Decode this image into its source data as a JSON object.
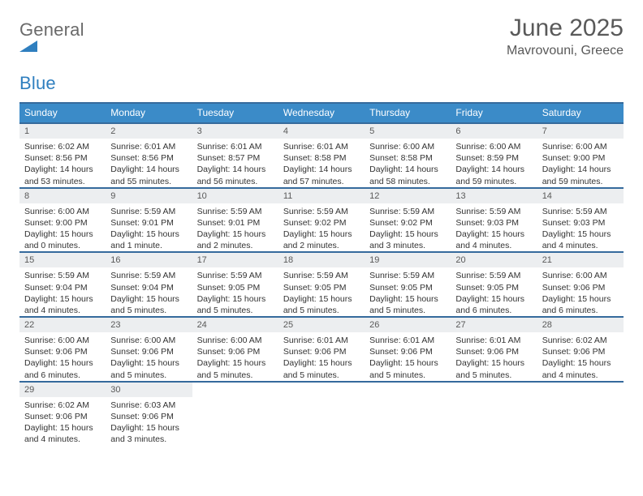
{
  "brand": {
    "name_a": "General",
    "name_b": "Blue"
  },
  "title": "June 2025",
  "subtitle": "Mavrovouni, Greece",
  "colors": {
    "header_bg": "#3b8bc8",
    "header_text": "#ffffff",
    "rule": "#356a9c",
    "daynum_bg": "#eceef0",
    "text": "#333333",
    "title_text": "#595959"
  },
  "day_headers": [
    "Sunday",
    "Monday",
    "Tuesday",
    "Wednesday",
    "Thursday",
    "Friday",
    "Saturday"
  ],
  "weeks": [
    [
      {
        "n": "1",
        "sr": "Sunrise: 6:02 AM",
        "ss": "Sunset: 8:56 PM",
        "d1": "Daylight: 14 hours",
        "d2": "and 53 minutes."
      },
      {
        "n": "2",
        "sr": "Sunrise: 6:01 AM",
        "ss": "Sunset: 8:56 PM",
        "d1": "Daylight: 14 hours",
        "d2": "and 55 minutes."
      },
      {
        "n": "3",
        "sr": "Sunrise: 6:01 AM",
        "ss": "Sunset: 8:57 PM",
        "d1": "Daylight: 14 hours",
        "d2": "and 56 minutes."
      },
      {
        "n": "4",
        "sr": "Sunrise: 6:01 AM",
        "ss": "Sunset: 8:58 PM",
        "d1": "Daylight: 14 hours",
        "d2": "and 57 minutes."
      },
      {
        "n": "5",
        "sr": "Sunrise: 6:00 AM",
        "ss": "Sunset: 8:58 PM",
        "d1": "Daylight: 14 hours",
        "d2": "and 58 minutes."
      },
      {
        "n": "6",
        "sr": "Sunrise: 6:00 AM",
        "ss": "Sunset: 8:59 PM",
        "d1": "Daylight: 14 hours",
        "d2": "and 59 minutes."
      },
      {
        "n": "7",
        "sr": "Sunrise: 6:00 AM",
        "ss": "Sunset: 9:00 PM",
        "d1": "Daylight: 14 hours",
        "d2": "and 59 minutes."
      }
    ],
    [
      {
        "n": "8",
        "sr": "Sunrise: 6:00 AM",
        "ss": "Sunset: 9:00 PM",
        "d1": "Daylight: 15 hours",
        "d2": "and 0 minutes."
      },
      {
        "n": "9",
        "sr": "Sunrise: 5:59 AM",
        "ss": "Sunset: 9:01 PM",
        "d1": "Daylight: 15 hours",
        "d2": "and 1 minute."
      },
      {
        "n": "10",
        "sr": "Sunrise: 5:59 AM",
        "ss": "Sunset: 9:01 PM",
        "d1": "Daylight: 15 hours",
        "d2": "and 2 minutes."
      },
      {
        "n": "11",
        "sr": "Sunrise: 5:59 AM",
        "ss": "Sunset: 9:02 PM",
        "d1": "Daylight: 15 hours",
        "d2": "and 2 minutes."
      },
      {
        "n": "12",
        "sr": "Sunrise: 5:59 AM",
        "ss": "Sunset: 9:02 PM",
        "d1": "Daylight: 15 hours",
        "d2": "and 3 minutes."
      },
      {
        "n": "13",
        "sr": "Sunrise: 5:59 AM",
        "ss": "Sunset: 9:03 PM",
        "d1": "Daylight: 15 hours",
        "d2": "and 4 minutes."
      },
      {
        "n": "14",
        "sr": "Sunrise: 5:59 AM",
        "ss": "Sunset: 9:03 PM",
        "d1": "Daylight: 15 hours",
        "d2": "and 4 minutes."
      }
    ],
    [
      {
        "n": "15",
        "sr": "Sunrise: 5:59 AM",
        "ss": "Sunset: 9:04 PM",
        "d1": "Daylight: 15 hours",
        "d2": "and 4 minutes."
      },
      {
        "n": "16",
        "sr": "Sunrise: 5:59 AM",
        "ss": "Sunset: 9:04 PM",
        "d1": "Daylight: 15 hours",
        "d2": "and 5 minutes."
      },
      {
        "n": "17",
        "sr": "Sunrise: 5:59 AM",
        "ss": "Sunset: 9:05 PM",
        "d1": "Daylight: 15 hours",
        "d2": "and 5 minutes."
      },
      {
        "n": "18",
        "sr": "Sunrise: 5:59 AM",
        "ss": "Sunset: 9:05 PM",
        "d1": "Daylight: 15 hours",
        "d2": "and 5 minutes."
      },
      {
        "n": "19",
        "sr": "Sunrise: 5:59 AM",
        "ss": "Sunset: 9:05 PM",
        "d1": "Daylight: 15 hours",
        "d2": "and 5 minutes."
      },
      {
        "n": "20",
        "sr": "Sunrise: 5:59 AM",
        "ss": "Sunset: 9:05 PM",
        "d1": "Daylight: 15 hours",
        "d2": "and 6 minutes."
      },
      {
        "n": "21",
        "sr": "Sunrise: 6:00 AM",
        "ss": "Sunset: 9:06 PM",
        "d1": "Daylight: 15 hours",
        "d2": "and 6 minutes."
      }
    ],
    [
      {
        "n": "22",
        "sr": "Sunrise: 6:00 AM",
        "ss": "Sunset: 9:06 PM",
        "d1": "Daylight: 15 hours",
        "d2": "and 6 minutes."
      },
      {
        "n": "23",
        "sr": "Sunrise: 6:00 AM",
        "ss": "Sunset: 9:06 PM",
        "d1": "Daylight: 15 hours",
        "d2": "and 5 minutes."
      },
      {
        "n": "24",
        "sr": "Sunrise: 6:00 AM",
        "ss": "Sunset: 9:06 PM",
        "d1": "Daylight: 15 hours",
        "d2": "and 5 minutes."
      },
      {
        "n": "25",
        "sr": "Sunrise: 6:01 AM",
        "ss": "Sunset: 9:06 PM",
        "d1": "Daylight: 15 hours",
        "d2": "and 5 minutes."
      },
      {
        "n": "26",
        "sr": "Sunrise: 6:01 AM",
        "ss": "Sunset: 9:06 PM",
        "d1": "Daylight: 15 hours",
        "d2": "and 5 minutes."
      },
      {
        "n": "27",
        "sr": "Sunrise: 6:01 AM",
        "ss": "Sunset: 9:06 PM",
        "d1": "Daylight: 15 hours",
        "d2": "and 5 minutes."
      },
      {
        "n": "28",
        "sr": "Sunrise: 6:02 AM",
        "ss": "Sunset: 9:06 PM",
        "d1": "Daylight: 15 hours",
        "d2": "and 4 minutes."
      }
    ],
    [
      {
        "n": "29",
        "sr": "Sunrise: 6:02 AM",
        "ss": "Sunset: 9:06 PM",
        "d1": "Daylight: 15 hours",
        "d2": "and 4 minutes."
      },
      {
        "n": "30",
        "sr": "Sunrise: 6:03 AM",
        "ss": "Sunset: 9:06 PM",
        "d1": "Daylight: 15 hours",
        "d2": "and 3 minutes."
      },
      {
        "empty": true
      },
      {
        "empty": true
      },
      {
        "empty": true
      },
      {
        "empty": true
      },
      {
        "empty": true
      }
    ]
  ]
}
